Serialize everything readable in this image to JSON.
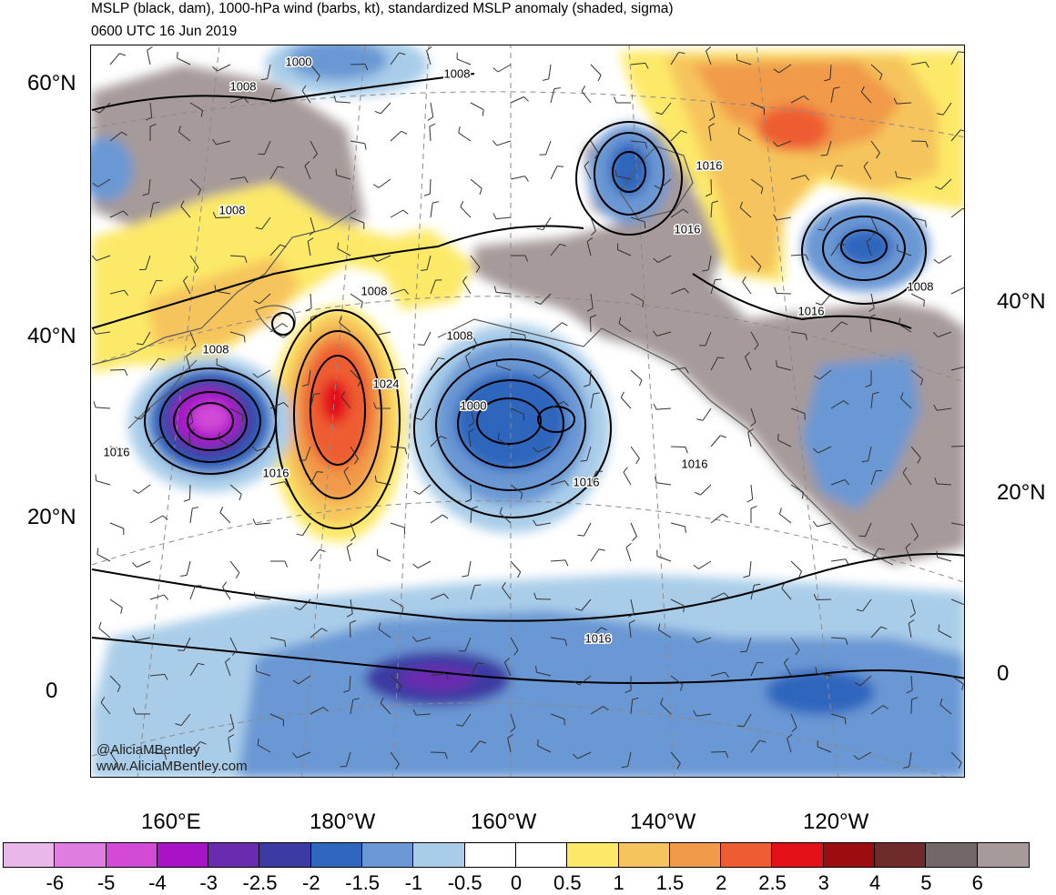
{
  "title_line1": "MSLP (black, dam), 1000-hPa wind (barbs, kt), standardized MSLP anomaly (shaded, sigma)",
  "title_line2": "0600 UTC 16 Jun 2019",
  "credit_line1": "@AliciaMBentley",
  "credit_line2": "www.AliciaMBentley.com",
  "lat_labels_left": [
    "60°N",
    "40°N",
    "20°N",
    "0"
  ],
  "lat_labels_right": [
    "40°N",
    "20°N",
    "0"
  ],
  "lon_labels": [
    "160°E",
    "180°W",
    "160°W",
    "140°W",
    "120°W"
  ],
  "isobar_labels": [
    "1000",
    "1008",
    "1008",
    "1008",
    "1016",
    "1016",
    "1008",
    "1008",
    "1016",
    "1024",
    "1008",
    "1008",
    "1000",
    "1016",
    "1016",
    "1016",
    "1016",
    "1016"
  ],
  "colorbar": {
    "labels": [
      "-6",
      "-5",
      "-4",
      "-3",
      "-2.5",
      "-2",
      "-1.5",
      "-1",
      "-0.5",
      "0",
      "0.5",
      "1",
      "1.5",
      "2",
      "2.5",
      "3",
      "4",
      "5",
      "6"
    ],
    "colors": [
      "#e9b8e8",
      "#e07de0",
      "#d24ad6",
      "#a813c8",
      "#6a2bb0",
      "#3c3aa3",
      "#2f66be",
      "#6a98d4",
      "#a9cde9",
      "#ffffff",
      "#ffffff",
      "#fde968",
      "#f6c45c",
      "#f19a4a",
      "#ee5d32",
      "#e4101a",
      "#9b0d0f",
      "#6f2a2a",
      "#736868",
      "#a69a9a"
    ]
  }
}
